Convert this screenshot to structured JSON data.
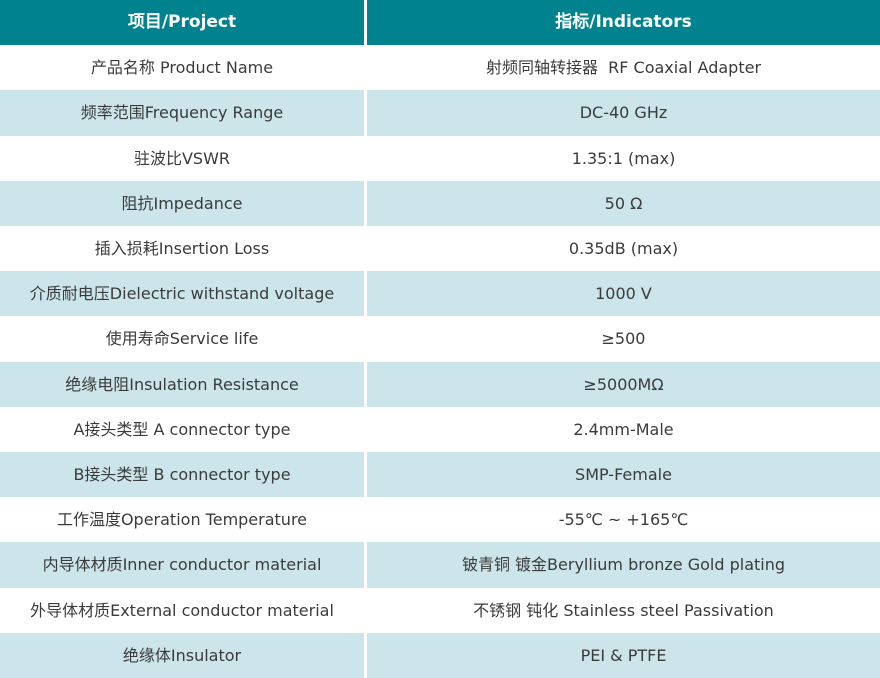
{
  "colors": {
    "header_bg": "#00838F",
    "header_text": "#FFFFFF",
    "alt_row_bg": "#CBE5EA",
    "row_bg": "#FFFFFF",
    "body_text": "#3B3B3B",
    "divider": "#FFFFFF"
  },
  "table": {
    "header": {
      "project": "项目/Project",
      "indicators": "指标/Indicators"
    },
    "rows": [
      {
        "project": "产品名称 Product Name",
        "indicator": "射频同轴转接器  RF Coaxial Adapter"
      },
      {
        "project": "频率范围Frequency Range",
        "indicator": "DC-40 GHz"
      },
      {
        "project": "驻波比VSWR",
        "indicator": "1.35:1 (max)"
      },
      {
        "project": "阻抗Impedance",
        "indicator": "50 Ω"
      },
      {
        "project": "插入损耗Insertion Loss",
        "indicator": "0.35dB (max)"
      },
      {
        "project": "介质耐电压Dielectric withstand voltage",
        "indicator": "1000 V"
      },
      {
        "project": "使用寿命Service life",
        "indicator": "≥500"
      },
      {
        "project": "绝缘电阻Insulation Resistance",
        "indicator": "≥5000MΩ"
      },
      {
        "project": "A接头类型 A connector type",
        "indicator": "2.4mm-Male"
      },
      {
        "project": "B接头类型 B connector type",
        "indicator": "SMP-Female"
      },
      {
        "project": "工作温度Operation Temperature",
        "indicator": "-55℃ ~ +165℃"
      },
      {
        "project": "内导体材质Inner conductor material",
        "indicator": "铍青铜 镀金Beryllium bronze Gold plating"
      },
      {
        "project": "外导体材质External conductor material",
        "indicator": "不锈钢 钝化 Stainless steel Passivation"
      },
      {
        "project": "绝缘体Insulator",
        "indicator": "PEI & PTFE"
      }
    ]
  }
}
